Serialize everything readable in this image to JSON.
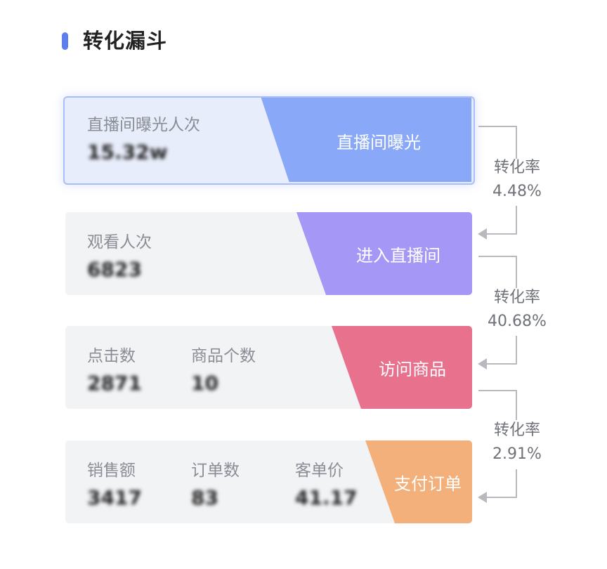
{
  "header": {
    "title": "转化漏斗",
    "accent_color": "#5b7ff0"
  },
  "funnel": [
    {
      "stage": "直播间曝光",
      "color": "#8aa8f8",
      "metrics": [
        {
          "label": "直播间曝光人次",
          "value": "15.32w"
        }
      ]
    },
    {
      "stage": "进入直播间",
      "color": "#a597f5",
      "metrics": [
        {
          "label": "观看人次",
          "value": "6823"
        }
      ]
    },
    {
      "stage": "访问商品",
      "color": "#e8718e",
      "metrics": [
        {
          "label": "点击数",
          "value": "2871"
        },
        {
          "label": "商品个数",
          "value": "10"
        }
      ]
    },
    {
      "stage": "支付订单",
      "color": "#f3b07a",
      "metrics": [
        {
          "label": "销售额",
          "value": "3417"
        },
        {
          "label": "订单数",
          "value": "83"
        },
        {
          "label": "客单价",
          "value": "41.17"
        }
      ]
    }
  ],
  "conversions": [
    {
      "label": "转化率",
      "value": "4.48%"
    },
    {
      "label": "转化率",
      "value": "40.68%"
    },
    {
      "label": "转化率",
      "value": "2.91%"
    }
  ],
  "connector_color": "#b7b9bf"
}
